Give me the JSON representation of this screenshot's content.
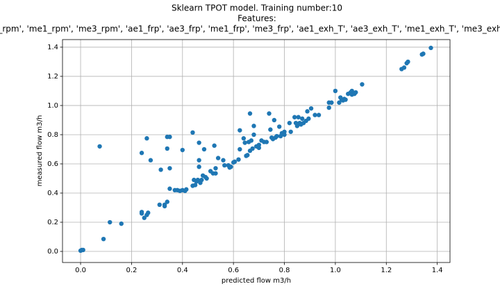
{
  "chart_data": {
    "type": "scatter",
    "title": "Sklearn TPOT model. Training number:10",
    "subtitle": "Features:",
    "features": "_rpm', 'me1_rpm', 'me3_rpm', 'ae1_frp', 'ae3_frp', 'me1_frp', 'me3_frp', 'ae1_exh_T', 'ae3_exh_T', 'me1_exh_T', 'me3_exh",
    "x_label": "predicted flow m3/h",
    "y_label": "measured flow m3/h",
    "color": "#1f77b4",
    "grid": true,
    "xlim": [
      -0.071,
      1.45
    ],
    "ylim": [
      -0.076,
      1.452
    ],
    "xticks": [
      {
        "value": 0,
        "label": "0.0"
      },
      0.2,
      0.4,
      0.6,
      0.8,
      {
        "value": 1,
        "label": "1.0"
      },
      1.2,
      1.4
    ],
    "yticks": [
      {
        "value": 0,
        "label": "0.0"
      },
      0.2,
      0.4,
      0.6,
      0.8,
      {
        "value": 1,
        "label": "1.0"
      },
      1.2,
      1.4
    ],
    "x": [
      0.0,
      0.005,
      0.01,
      0.075,
      0.09,
      0.115,
      0.16,
      0.24,
      0.24,
      0.24,
      0.25,
      0.26,
      0.26,
      0.265,
      0.275,
      0.31,
      0.315,
      0.33,
      0.33,
      0.34,
      0.34,
      0.34,
      0.35,
      0.35,
      0.35,
      0.37,
      0.38,
      0.39,
      0.4,
      0.4,
      0.41,
      0.415,
      0.44,
      0.44,
      0.445,
      0.45,
      0.455,
      0.46,
      0.465,
      0.465,
      0.465,
      0.47,
      0.475,
      0.48,
      0.485,
      0.49,
      0.495,
      0.51,
      0.52,
      0.525,
      0.53,
      0.53,
      0.54,
      0.56,
      0.565,
      0.58,
      0.585,
      0.59,
      0.6,
      0.605,
      0.62,
      0.625,
      0.625,
      0.64,
      0.645,
      0.65,
      0.655,
      0.66,
      0.665,
      0.665,
      0.67,
      0.675,
      0.68,
      0.68,
      0.69,
      0.7,
      0.7,
      0.71,
      0.72,
      0.73,
      0.74,
      0.745,
      0.75,
      0.755,
      0.76,
      0.765,
      0.77,
      0.78,
      0.785,
      0.79,
      0.8,
      0.8,
      0.82,
      0.825,
      0.84,
      0.845,
      0.85,
      0.855,
      0.86,
      0.865,
      0.87,
      0.875,
      0.885,
      0.89,
      0.895,
      0.905,
      0.92,
      0.935,
      0.975,
      0.975,
      0.985,
      1.0,
      1.015,
      1.02,
      1.025,
      1.03,
      1.035,
      1.04,
      1.05,
      1.06,
      1.065,
      1.065,
      1.075,
      1.08,
      1.105,
      1.26,
      1.27,
      1.28,
      1.285,
      1.34,
      1.345,
      1.375
    ],
    "values": [
      0.005,
      0.01,
      0.01,
      0.72,
      0.085,
      0.2,
      0.19,
      0.27,
      0.26,
      0.675,
      0.23,
      0.775,
      0.25,
      0.265,
      0.625,
      0.32,
      0.56,
      0.32,
      0.31,
      0.34,
      0.705,
      0.785,
      0.785,
      0.57,
      0.43,
      0.42,
      0.42,
      0.415,
      0.695,
      0.42,
      0.415,
      0.425,
      0.815,
      0.45,
      0.49,
      0.455,
      0.48,
      0.49,
      0.745,
      0.625,
      0.58,
      0.47,
      0.49,
      0.52,
      0.7,
      0.51,
      0.5,
      0.55,
      0.535,
      0.725,
      0.57,
      0.535,
      0.64,
      0.625,
      0.59,
      0.59,
      0.575,
      0.58,
      0.61,
      0.615,
      0.63,
      0.83,
      0.7,
      0.775,
      0.745,
      0.655,
      0.66,
      0.75,
      0.945,
      0.69,
      0.76,
      0.705,
      0.86,
      0.8,
      0.72,
      0.73,
      0.71,
      0.76,
      0.75,
      0.75,
      0.945,
      0.835,
      0.78,
      0.77,
      0.9,
      0.78,
      0.79,
      0.855,
      0.79,
      0.81,
      0.82,
      0.8,
      0.88,
      0.82,
      0.92,
      0.88,
      0.86,
      0.92,
      0.88,
      0.87,
      0.91,
      0.88,
      0.895,
      0.96,
      0.91,
      0.98,
      0.935,
      0.935,
      0.985,
      1.02,
      1.02,
      1.1,
      1.02,
      1.055,
      1.04,
      1.035,
      1.045,
      1.04,
      1.08,
      1.09,
      1.1,
      1.075,
      1.08,
      1.09,
      1.145,
      1.25,
      1.26,
      1.29,
      1.3,
      1.35,
      1.355,
      1.395
    ]
  }
}
